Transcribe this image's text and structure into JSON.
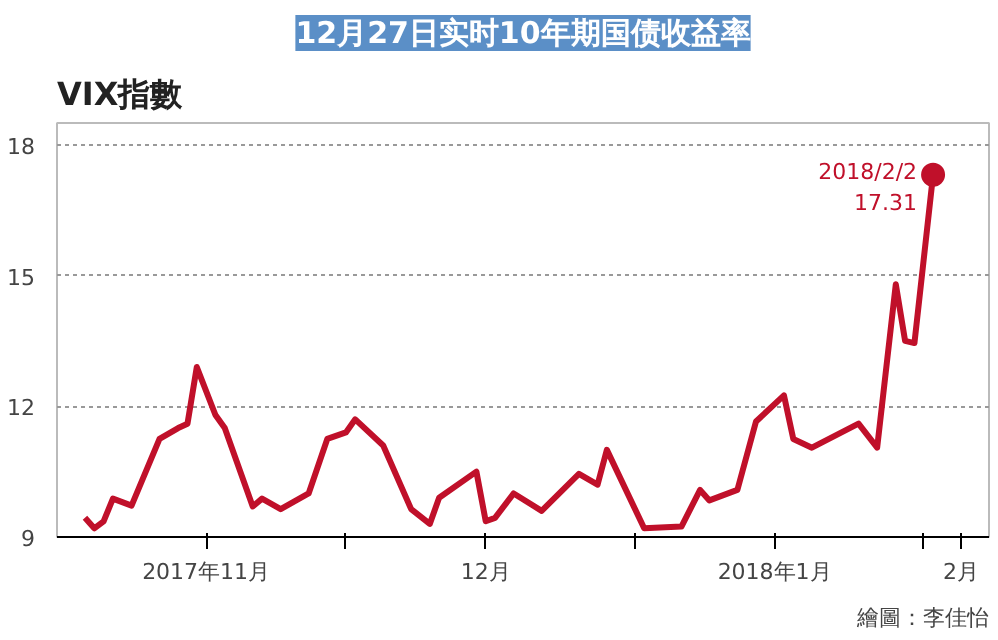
{
  "chart_data": {
    "type": "line",
    "title": "12月27日实时10年期国债收益率",
    "subtitle": "VIX指數",
    "x": [
      "2017-11-03",
      "2017-11-04",
      "2017-11-05",
      "2017-11-06",
      "2017-11-08",
      "2017-11-11",
      "2017-11-13",
      "2017-11-14",
      "2017-11-15",
      "2017-11-17",
      "2017-11-18",
      "2017-11-21",
      "2017-11-22",
      "2017-11-24",
      "2017-11-27",
      "2017-11-29",
      "2017-12-01",
      "2017-12-02",
      "2017-12-05",
      "2017-12-08",
      "2017-12-10",
      "2017-12-11",
      "2017-12-15",
      "2017-12-16",
      "2017-12-17",
      "2017-12-19",
      "2017-12-22",
      "2017-12-26",
      "2017-12-28",
      "2017-12-29",
      "2018-01-02",
      "2018-01-06",
      "2018-01-08",
      "2018-01-09",
      "2018-01-12",
      "2018-01-14",
      "2018-01-17",
      "2018-01-18",
      "2018-01-20",
      "2018-01-25",
      "2018-01-27",
      "2018-01-29",
      "2018-01-30",
      "2018-01-31",
      "2018-02-02"
    ],
    "series": [
      {
        "color": "#c0102a",
        "values": [
          9.44,
          9.2,
          9.36,
          9.88,
          9.72,
          11.25,
          11.5,
          11.6,
          12.9,
          11.8,
          11.5,
          9.7,
          9.88,
          9.64,
          10.0,
          11.25,
          11.4,
          11.7,
          11.1,
          9.64,
          9.3,
          9.9,
          10.5,
          9.36,
          9.44,
          10.0,
          9.6,
          10.45,
          10.2,
          11.0,
          9.2,
          9.24,
          10.08,
          9.84,
          10.08,
          11.65,
          12.25,
          11.25,
          11.05,
          11.6,
          11.05,
          14.8,
          13.5,
          13.45,
          17.31
        ]
      }
    ],
    "xlim": [
      "2017-10-31",
      "2018-02-08"
    ],
    "ylim": [
      9,
      18.5
    ],
    "xticks": [
      {
        "value": "2017-11-16",
        "label": "2017年11月"
      },
      {
        "value": "2017-12-01",
        "label": null
      },
      {
        "value": "2017-12-16",
        "label": "12月"
      },
      {
        "value": "2018-01-01",
        "label": null
      },
      {
        "value": "2018-01-16",
        "label": "2018年1月"
      },
      {
        "value": "2018-02-01",
        "label": null
      },
      {
        "value": "2018-02-05",
        "label": "2月"
      }
    ],
    "yticks": [
      9,
      12,
      15,
      18
    ],
    "grid": "y",
    "line_style": "solid",
    "annotations": [
      {
        "text": "2018/2/2\n17.31",
        "x": "2018-02-02",
        "y": 17.31
      },
      "繪圖：李佳怡"
    ]
  }
}
